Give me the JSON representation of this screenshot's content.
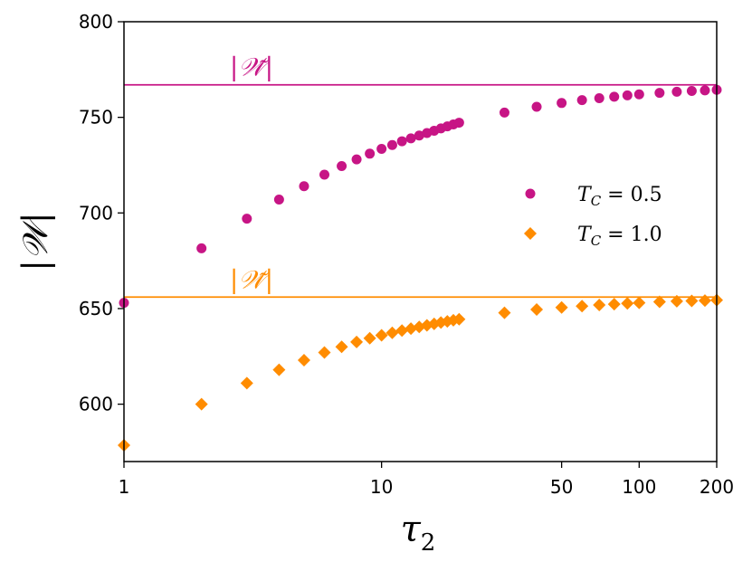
{
  "chart_data": {
    "type": "scatter",
    "xscale": "log",
    "xlim": [
      1,
      200
    ],
    "ylim": [
      570,
      800
    ],
    "xlabel": "τ2",
    "ylabel": "|𝒲|",
    "xticks": [
      {
        "value": 1,
        "label": "1"
      },
      {
        "value": 10,
        "label": "10"
      },
      {
        "value": 50,
        "label": "50"
      },
      {
        "value": 100,
        "label": "100"
      },
      {
        "value": 200,
        "label": "200"
      }
    ],
    "yticks": [
      {
        "value": 600,
        "label": "600"
      },
      {
        "value": 650,
        "label": "650"
      },
      {
        "value": 700,
        "label": "700"
      },
      {
        "value": 750,
        "label": "750"
      },
      {
        "value": 800,
        "label": "800"
      }
    ],
    "legend_position": "center-right",
    "reference_lines": [
      {
        "y": 767,
        "color": "#c71585",
        "label": "|𝒲̃|"
      },
      {
        "y": 656,
        "color": "#ff8c00",
        "label": "|𝒲̃|"
      }
    ],
    "series": [
      {
        "name": "TC = 0.5",
        "legend_main": "T",
        "legend_sub": "C",
        "legend_rest": " = 0.5",
        "marker": "circle",
        "color": "#c71585",
        "x": [
          1,
          2,
          3,
          4,
          5,
          6,
          7,
          8,
          9,
          10,
          11,
          12,
          13,
          14,
          15,
          16,
          17,
          18,
          19,
          20,
          30,
          40,
          50,
          60,
          70,
          80,
          90,
          100,
          120,
          140,
          160,
          180,
          200
        ],
        "y": [
          653,
          681.5,
          697,
          707,
          714,
          720,
          724.5,
          728,
          731,
          733.5,
          735.5,
          737.5,
          739,
          740.5,
          741.8,
          743,
          744.2,
          745.3,
          746.3,
          747.2,
          752.5,
          755.5,
          757.5,
          759,
          760,
          760.8,
          761.5,
          762,
          762.8,
          763.4,
          763.8,
          764.1,
          764.4
        ]
      },
      {
        "name": "TC = 1.0",
        "legend_main": "T",
        "legend_sub": "C",
        "legend_rest": " = 1.0",
        "marker": "diamond",
        "color": "#ff8c00",
        "x": [
          1,
          2,
          3,
          4,
          5,
          6,
          7,
          8,
          9,
          10,
          11,
          12,
          13,
          14,
          15,
          16,
          17,
          18,
          19,
          20,
          30,
          40,
          50,
          60,
          70,
          80,
          90,
          100,
          120,
          140,
          160,
          180,
          200
        ],
        "y": [
          578.5,
          600,
          611,
          618,
          623,
          627,
          630,
          632.5,
          634.5,
          636,
          637.3,
          638.5,
          639.5,
          640.4,
          641.2,
          642,
          642.7,
          643.3,
          643.9,
          644.4,
          647.8,
          649.5,
          650.6,
          651.3,
          651.9,
          652.3,
          652.7,
          653,
          653.5,
          653.8,
          654,
          654.2,
          654.4
        ]
      }
    ]
  }
}
